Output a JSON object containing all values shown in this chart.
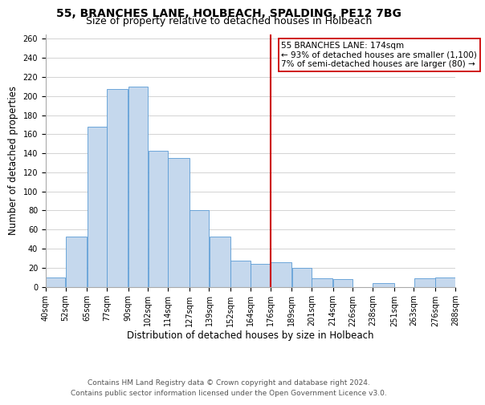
{
  "title": "55, BRANCHES LANE, HOLBEACH, SPALDING, PE12 7BG",
  "subtitle": "Size of property relative to detached houses in Holbeach",
  "xlabel": "Distribution of detached houses by size in Holbeach",
  "ylabel": "Number of detached properties",
  "bar_labels": [
    "40sqm",
    "52sqm",
    "65sqm",
    "77sqm",
    "90sqm",
    "102sqm",
    "114sqm",
    "127sqm",
    "139sqm",
    "152sqm",
    "164sqm",
    "176sqm",
    "189sqm",
    "201sqm",
    "214sqm",
    "226sqm",
    "238sqm",
    "251sqm",
    "263sqm",
    "276sqm",
    "288sqm"
  ],
  "bar_heights": [
    10,
    53,
    168,
    207,
    210,
    143,
    135,
    80,
    53,
    27,
    24,
    26,
    20,
    9,
    8,
    0,
    4,
    0,
    9,
    10
  ],
  "bar_edges": [
    40,
    52,
    65,
    77,
    90,
    102,
    114,
    127,
    139,
    152,
    164,
    176,
    189,
    201,
    214,
    226,
    238,
    251,
    263,
    276,
    288
  ],
  "bar_color": "#c5d8ed",
  "bar_edgecolor": "#5b9bd5",
  "vline_x": 176,
  "vline_color": "#cc0000",
  "annotation_title": "55 BRANCHES LANE: 174sqm",
  "annotation_line1": "← 93% of detached houses are smaller (1,100)",
  "annotation_line2": "7% of semi-detached houses are larger (80) →",
  "annotation_box_facecolor": "white",
  "annotation_box_edgecolor": "#cc0000",
  "ylim": [
    0,
    265
  ],
  "yticks": [
    0,
    20,
    40,
    60,
    80,
    100,
    120,
    140,
    160,
    180,
    200,
    220,
    240,
    260
  ],
  "footer1": "Contains HM Land Registry data © Crown copyright and database right 2024.",
  "footer2": "Contains public sector information licensed under the Open Government Licence v3.0.",
  "title_fontsize": 10,
  "subtitle_fontsize": 9,
  "axis_label_fontsize": 8.5,
  "tick_fontsize": 7,
  "annotation_fontsize": 7.5,
  "footer_fontsize": 6.5
}
